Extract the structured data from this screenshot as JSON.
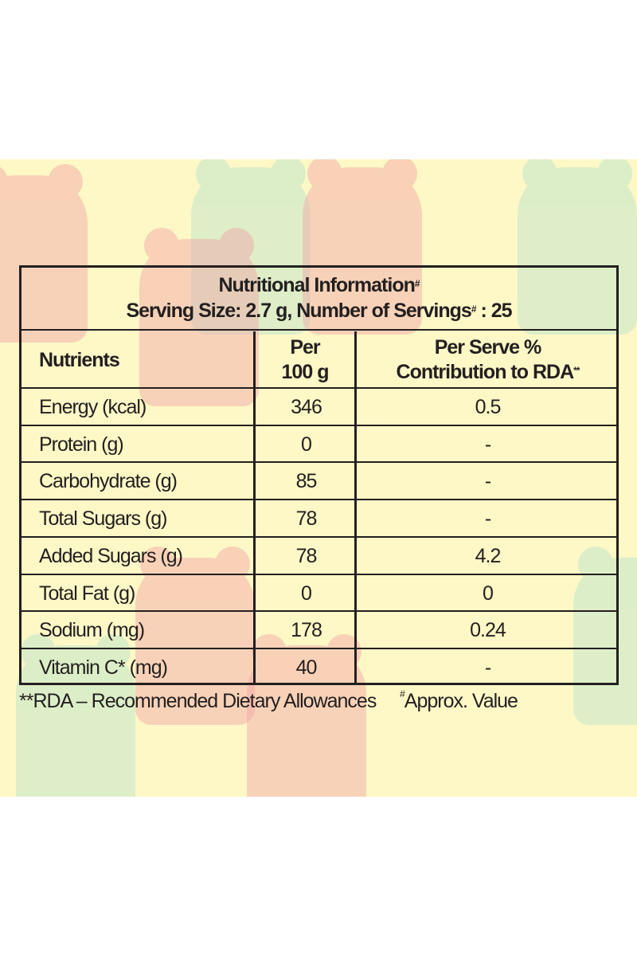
{
  "title": "Nutritional Information",
  "title_mark": "#",
  "serving_prefix": "Serving Size: 2.7 g, Number of Servings",
  "serving_mark": "#",
  "serving_suffix": " : 25",
  "headers": {
    "nutrients": "Nutrients",
    "per100_line1": "Per",
    "per100_line2": "100 g",
    "rda_line1": "Per Serve %",
    "rda_line2": "Contribution to RDA",
    "rda_mark": "**"
  },
  "rows": [
    {
      "nutrient": "Energy (kcal)",
      "per100": "346",
      "rda": "0.5"
    },
    {
      "nutrient": "Protein (g)",
      "per100": "0",
      "rda": "-"
    },
    {
      "nutrient": "Carbohydrate (g)",
      "per100": "85",
      "rda": "-"
    },
    {
      "nutrient": "Total Sugars (g)",
      "per100": "78",
      "rda": "-"
    },
    {
      "nutrient": "Added Sugars (g)",
      "per100": "78",
      "rda": "4.2"
    },
    {
      "nutrient": "Total Fat (g)",
      "per100": "0",
      "rda": "0"
    },
    {
      "nutrient": "Sodium (mg)",
      "per100": "178",
      "rda": "0.24"
    },
    {
      "nutrient": "Vitamin C* (mg)",
      "per100": "40",
      "rda": "-"
    }
  ],
  "footnote_rda": "**RDA – Recommended Dietary Allowances",
  "footnote_approx_mark": "#",
  "footnote_approx": "Approx. Value"
}
